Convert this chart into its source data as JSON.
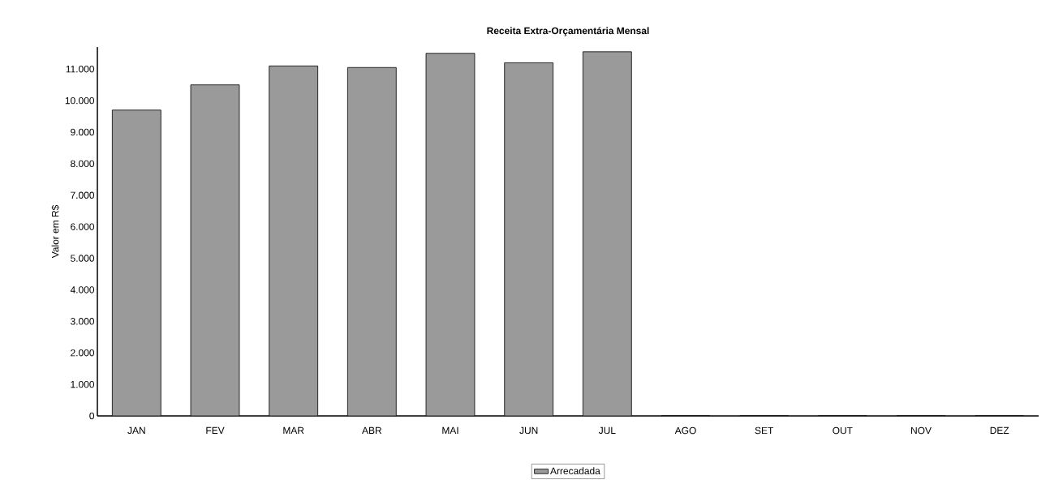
{
  "chart_data": {
    "type": "bar",
    "title": "Receita Extra-Orçamentária Mensal",
    "ylabel": "Valor em R$",
    "categories": [
      "JAN",
      "FEV",
      "MAR",
      "ABR",
      "MAI",
      "JUN",
      "JUL",
      "AGO",
      "SET",
      "OUT",
      "NOV",
      "DEZ"
    ],
    "series": [
      {
        "name": "Arrecadada",
        "color": "#9a9a9a",
        "values": [
          9700,
          10500,
          11100,
          11050,
          11500,
          11200,
          11550,
          0,
          0,
          0,
          0,
          0
        ]
      }
    ],
    "ylim": [
      0,
      11700
    ],
    "yticks": [
      0,
      {
        "value": 1000,
        "label": "1.000"
      },
      {
        "value": 2000,
        "label": "2.000"
      },
      {
        "value": 3000,
        "label": "3.000"
      },
      {
        "value": 4000,
        "label": "4.000"
      },
      {
        "value": 5000,
        "label": "5.000"
      },
      {
        "value": 6000,
        "label": "6.000"
      },
      {
        "value": 7000,
        "label": "7.000"
      },
      {
        "value": 8000,
        "label": "8.000"
      },
      {
        "value": 9000,
        "label": "9.000"
      },
      {
        "value": 10000,
        "label": "10.000"
      },
      {
        "value": 11000,
        "label": "11.000"
      }
    ],
    "grid": false,
    "legend": "bottom"
  }
}
